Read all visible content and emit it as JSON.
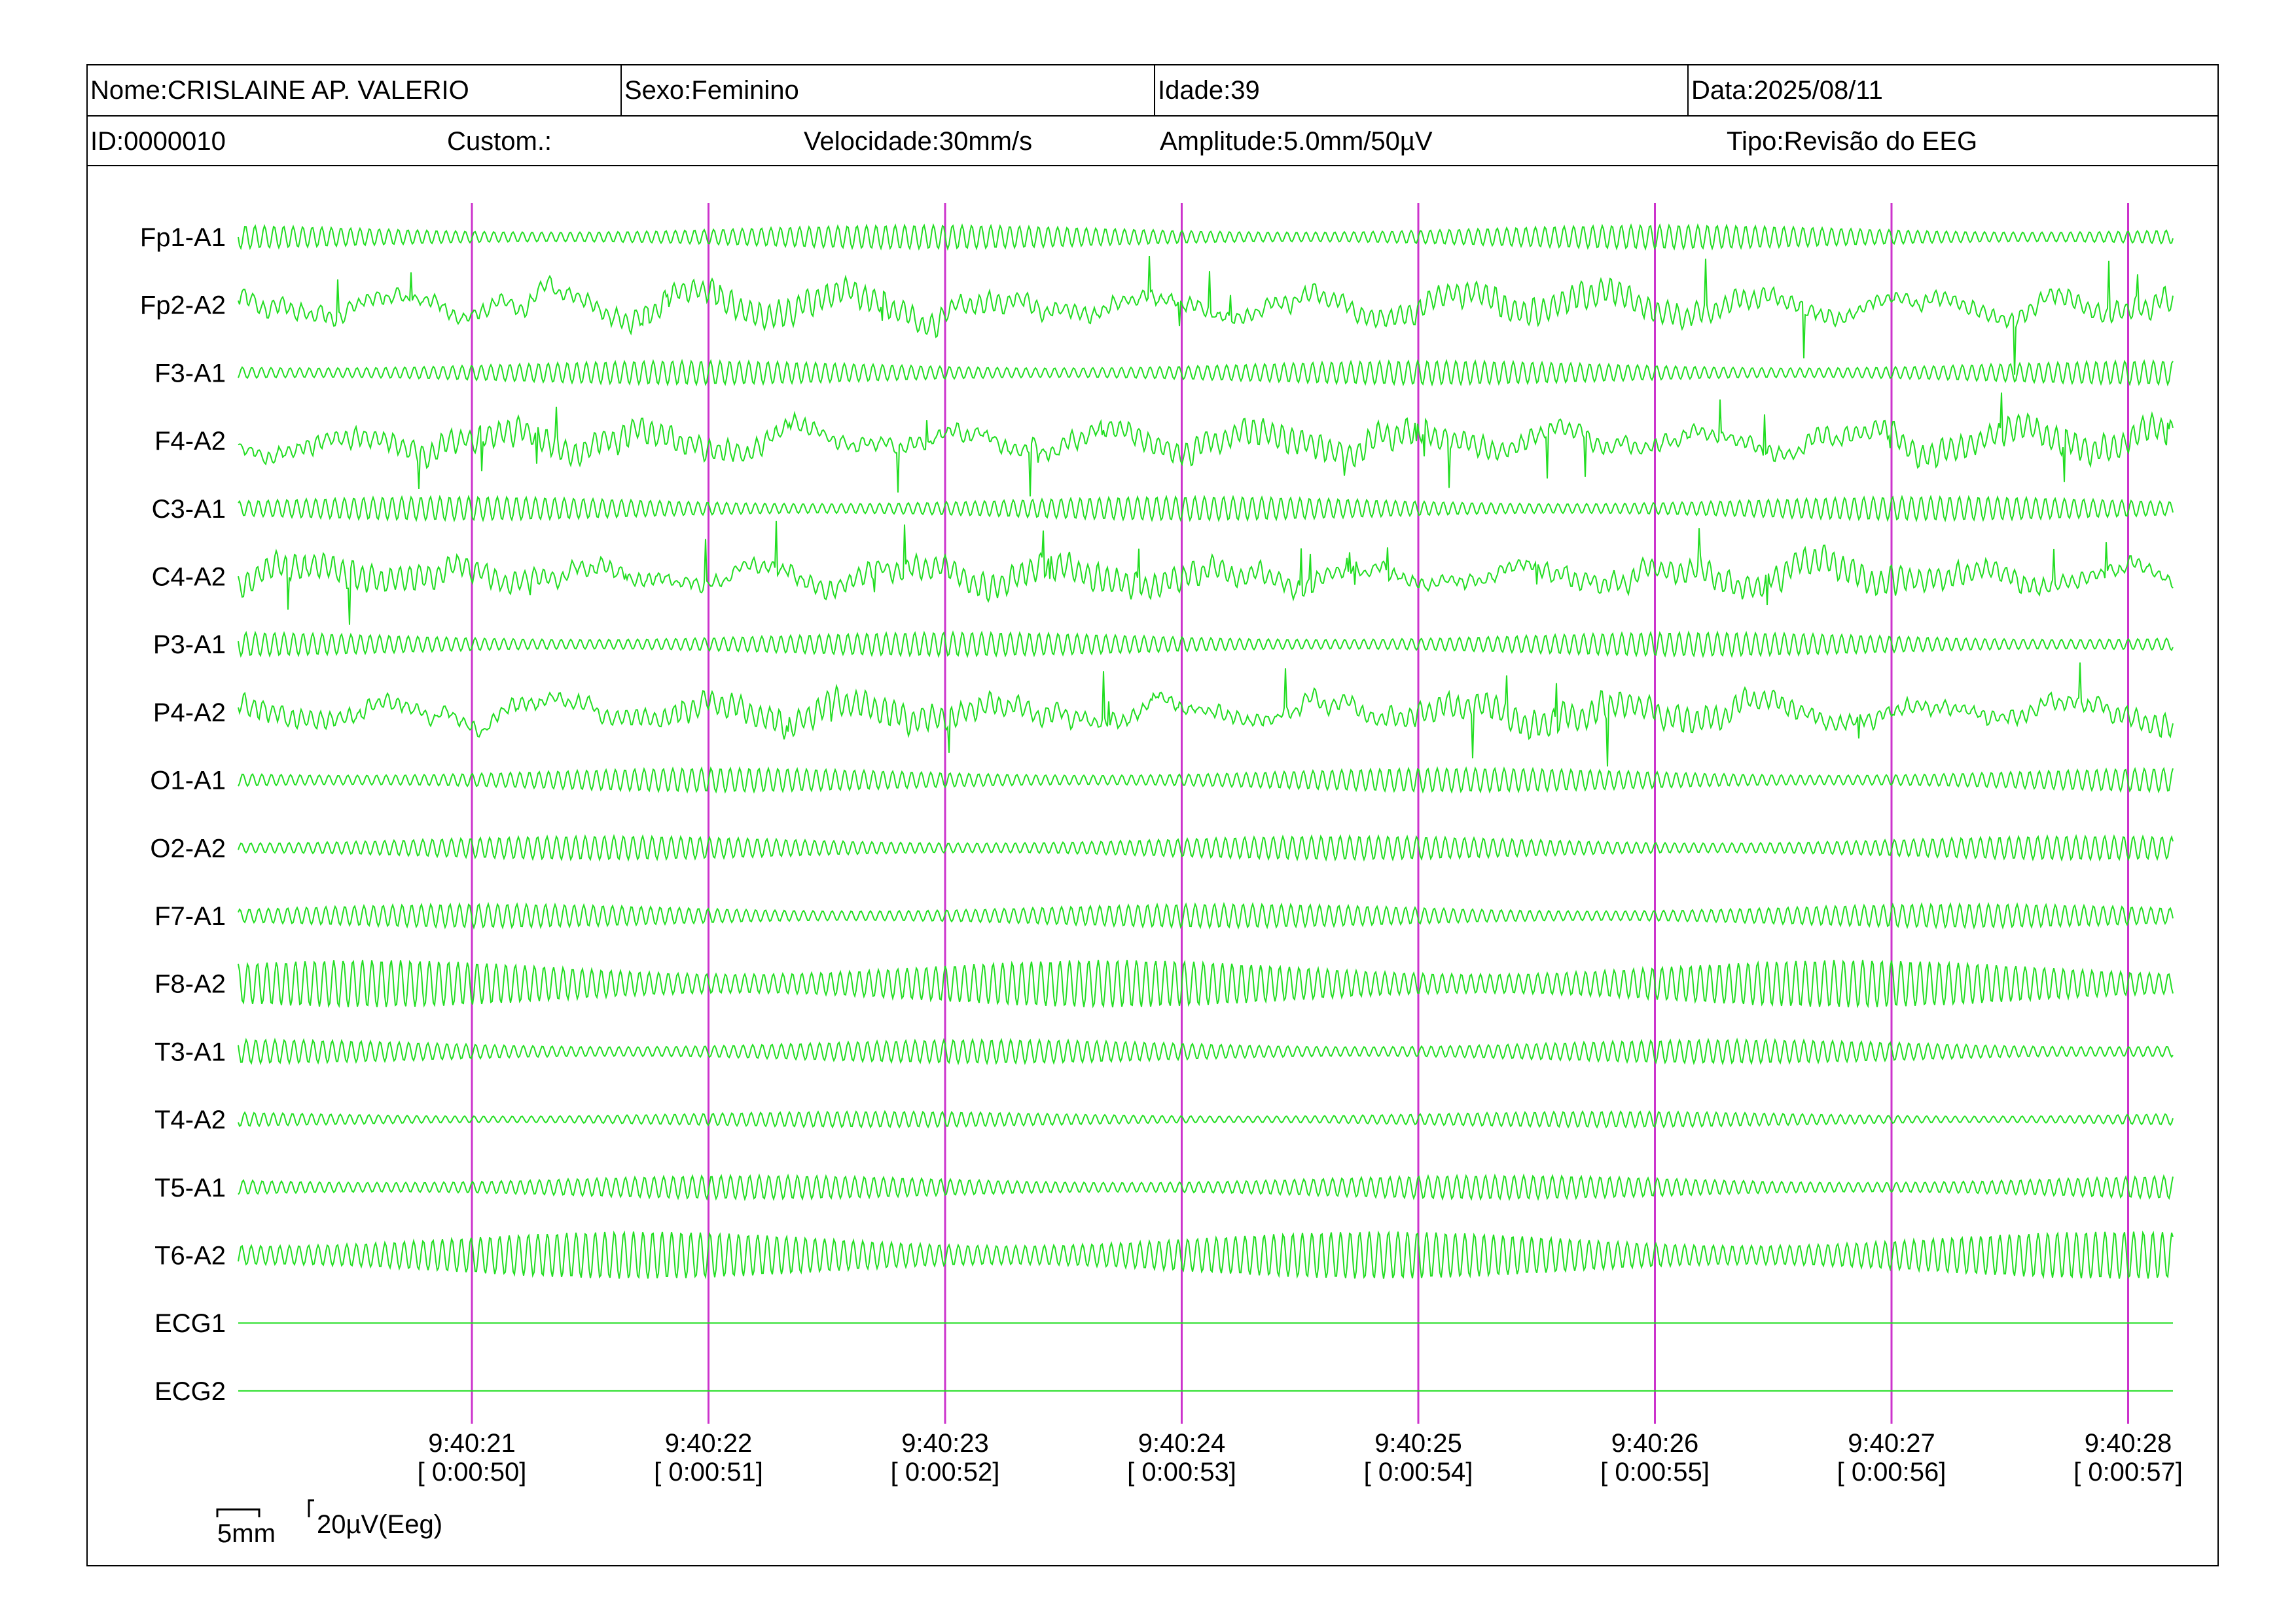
{
  "header": {
    "name": "Nome:CRISLAINE AP. VALERIO",
    "sex": "Sexo:Feminino",
    "age": "Idade:39",
    "date": "Data:2025/08/11",
    "id": "ID:0000010",
    "custom": "Custom.:",
    "speed": "Velocidade:30mm/s",
    "amplitude": "Amplitude:5.0mm/50µV",
    "type": "Tipo:Revisão do EEG"
  },
  "colors": {
    "trace": "#22dd22",
    "marker": "#cc33cc"
  },
  "chart_data": {
    "type": "line",
    "channels": [
      "Fp1-A1",
      "Fp2-A2",
      "F3-A1",
      "F4-A2",
      "C3-A1",
      "C4-A2",
      "P3-A1",
      "P4-A2",
      "O1-A1",
      "O2-A2",
      "F7-A1",
      "F8-A2",
      "T3-A1",
      "T4-A2",
      "T5-A1",
      "T6-A2",
      "ECG1",
      "ECG2"
    ],
    "time_ticks": [
      {
        "clock": "9:40:21",
        "elapsed": "[ 0:00:50]"
      },
      {
        "clock": "9:40:22",
        "elapsed": "[ 0:00:51]"
      },
      {
        "clock": "9:40:23",
        "elapsed": "[ 0:00:52]"
      },
      {
        "clock": "9:40:24",
        "elapsed": "[ 0:00:53]"
      },
      {
        "clock": "9:40:25",
        "elapsed": "[ 0:00:54]"
      },
      {
        "clock": "9:40:26",
        "elapsed": "[ 0:00:55]"
      },
      {
        "clock": "9:40:27",
        "elapsed": "[ 0:00:56]"
      },
      {
        "clock": "9:40:28",
        "elapsed": "[ 0:00:57]"
      }
    ],
    "scale": {
      "time": "5mm",
      "amplitude": "20µV(Eeg)"
    }
  }
}
